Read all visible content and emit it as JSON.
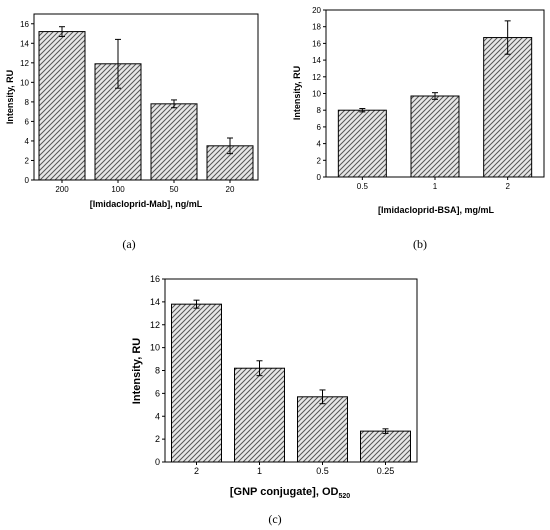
{
  "chart_data": [
    {
      "type": "bar",
      "caption": "(a)",
      "categories": [
        "200",
        "100",
        "50",
        "20"
      ],
      "values": [
        15.2,
        11.9,
        7.8,
        3.5
      ],
      "errors": [
        0.5,
        2.5,
        0.4,
        0.8
      ],
      "xlabel": "[Imidacloprid-Mab], ng/mL",
      "ylabel": "Intensity, RU",
      "ylim": [
        0,
        17
      ],
      "yticks": [
        0,
        2,
        4,
        6,
        8,
        10,
        12,
        14,
        16
      ],
      "grid": false,
      "fill": "hatched-gray"
    },
    {
      "type": "bar",
      "caption": "(b)",
      "categories": [
        "0.5",
        "1",
        "2"
      ],
      "values": [
        8.0,
        9.7,
        16.7
      ],
      "errors": [
        0.2,
        0.4,
        2.0
      ],
      "xlabel": "[Imidacloprid-BSA], mg/mL",
      "ylabel": "Intensity, RU",
      "ylim": [
        0,
        20
      ],
      "yticks": [
        0,
        2,
        4,
        6,
        8,
        10,
        12,
        14,
        16,
        18,
        20
      ],
      "grid": false,
      "fill": "hatched-gray"
    },
    {
      "type": "bar",
      "caption": "(c)",
      "categories": [
        "2",
        "1",
        "0.5",
        "0.25"
      ],
      "values": [
        13.8,
        8.2,
        5.7,
        2.7
      ],
      "errors": [
        0.35,
        0.65,
        0.6,
        0.2
      ],
      "xlabel": "[GNP conjugate], OD",
      "xlabel_sub": "520",
      "ylabel": "Intensity, RU",
      "ylim": [
        0,
        16
      ],
      "yticks": [
        0,
        2,
        4,
        6,
        8,
        10,
        12,
        14,
        16
      ],
      "grid": false,
      "fill": "hatched-gray"
    }
  ],
  "colors": {
    "bar_fill": "#e6e6e6",
    "hatch": "#555555",
    "axis": "#000000"
  }
}
